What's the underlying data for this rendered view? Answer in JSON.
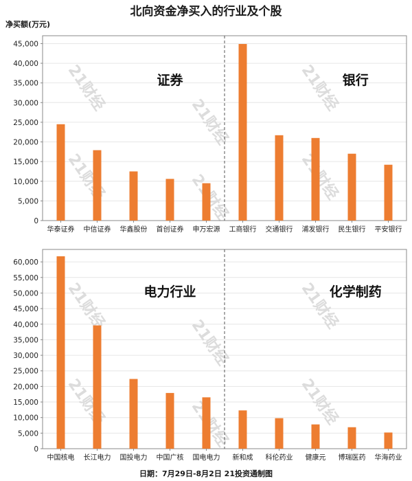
{
  "title": "北向资金净买入的行业及个股",
  "unit_label": "净买额(万元)",
  "footer": "日期：7月29日-8月2日 21投资通制图",
  "watermark": "21财经",
  "colors": {
    "bar": "#ed7d31",
    "grid": "#e6e6e6",
    "axis": "#888888"
  },
  "chart_data": [
    {
      "type": "bar",
      "panel": "top",
      "ylim": [
        0,
        47000
      ],
      "yticks": [
        0,
        5000,
        10000,
        15000,
        20000,
        25000,
        30000,
        35000,
        40000,
        45000
      ],
      "groups": [
        {
          "sector": "证券",
          "categories": [
            "华泰证券",
            "中信证券",
            "华鑫股份",
            "首创证券",
            "申万宏源"
          ],
          "values": [
            24500,
            17900,
            12500,
            10600,
            9500
          ]
        },
        {
          "sector": "银行",
          "categories": [
            "工商银行",
            "交通银行",
            "浦发银行",
            "民生银行",
            "平安银行"
          ],
          "values": [
            44900,
            21700,
            21000,
            17000,
            14200
          ]
        }
      ]
    },
    {
      "type": "bar",
      "panel": "bottom",
      "ylim": [
        0,
        64000
      ],
      "yticks": [
        0,
        5000,
        10000,
        15000,
        20000,
        25000,
        30000,
        35000,
        40000,
        45000,
        50000,
        55000,
        60000
      ],
      "groups": [
        {
          "sector": "电力行业",
          "categories": [
            "中国核电",
            "长江电力",
            "国投电力",
            "中国广核",
            "国电电力"
          ],
          "values": [
            61800,
            39600,
            22400,
            17900,
            16500
          ]
        },
        {
          "sector": "化学制药",
          "categories": [
            "新和成",
            "科伦药业",
            "健康元",
            "博瑞医药",
            "华海药业"
          ],
          "values": [
            12300,
            9800,
            7800,
            6900,
            5200
          ]
        }
      ]
    }
  ]
}
